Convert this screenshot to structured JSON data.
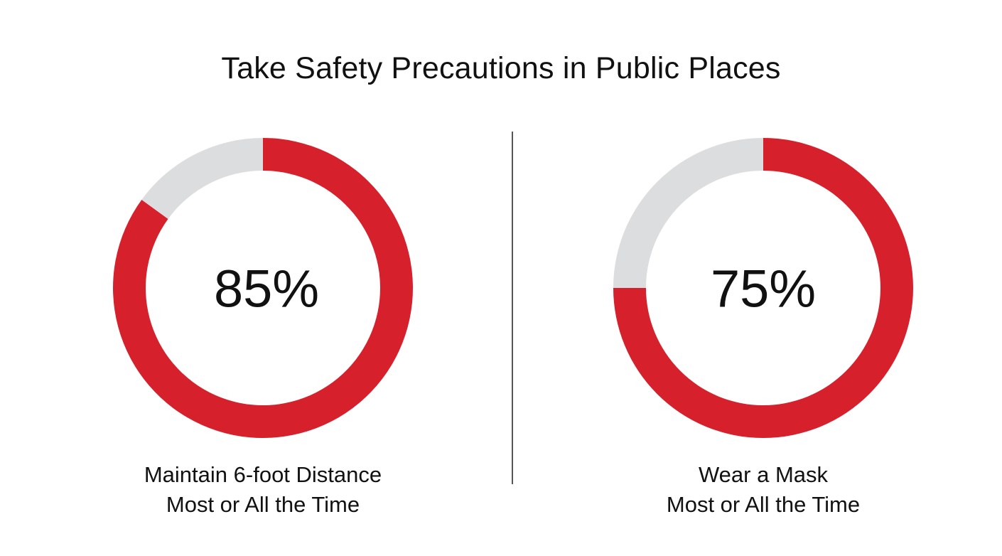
{
  "colors": {
    "filled": "#d6202b",
    "remainder": "#dcdddf",
    "text": "#111111",
    "divider": "#555555"
  },
  "chart_data": {
    "type": "donut",
    "title": "Take Safety Precautions in Public Places",
    "charts": [
      {
        "value": 85,
        "label": "85%",
        "caption_line1": "Maintain 6-foot Distance",
        "caption_line2": "Most or All the Time"
      },
      {
        "value": 75,
        "label": "75%",
        "caption_line1": "Wear a Mask",
        "caption_line2": "Most or All the Time"
      }
    ]
  }
}
